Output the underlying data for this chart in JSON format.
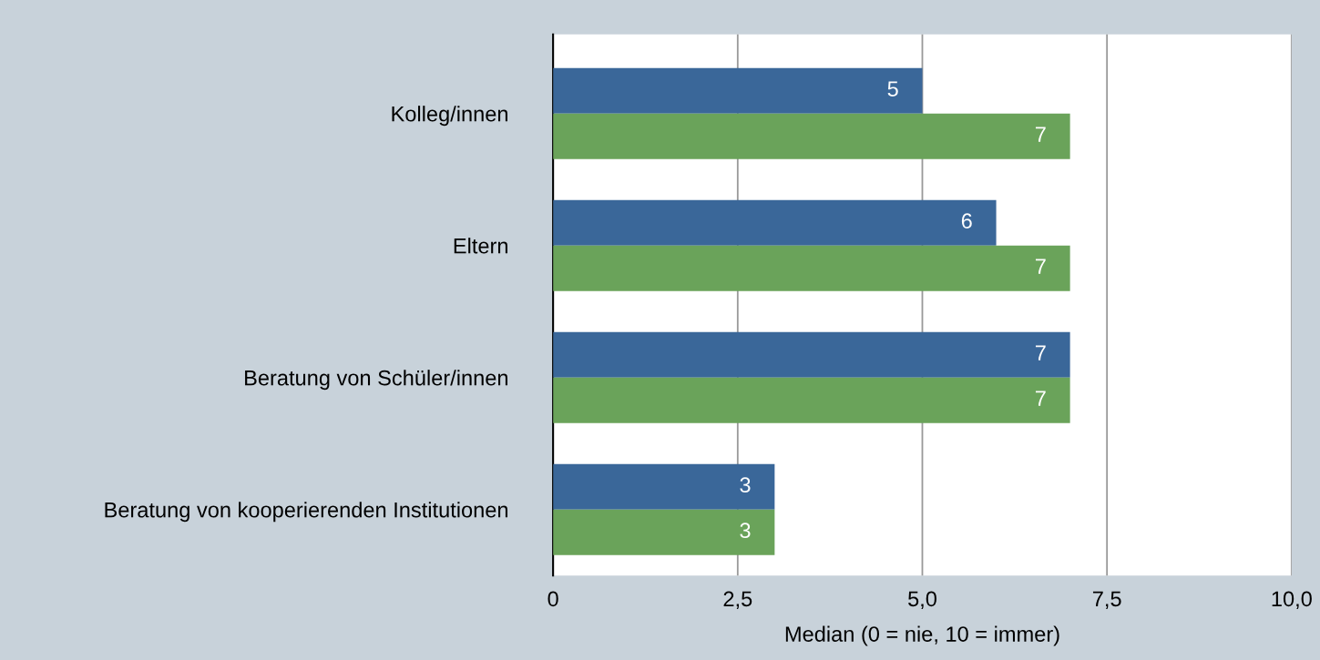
{
  "chart_data": {
    "type": "bar",
    "orientation": "horizontal",
    "categories": [
      "Kolleg/innen",
      "Eltern",
      "Beratung von Schüler/innen",
      "Beratung von kooperierenden Institutionen"
    ],
    "series": [
      {
        "color": "#3a6799",
        "values": [
          5,
          6,
          7,
          3
        ]
      },
      {
        "color": "#6aa35a",
        "values": [
          7,
          7,
          7,
          3
        ]
      }
    ],
    "xlabel": "Median (0 = nie, 10 = immer)",
    "xlim": [
      0,
      10
    ],
    "xticks": [
      0,
      {
        "value": 2.5,
        "label": "2,5"
      },
      {
        "value": 5,
        "label": "5,0"
      },
      {
        "value": 7.5,
        "label": "7,5"
      },
      {
        "value": 10,
        "label": "10,0"
      }
    ],
    "grid": "x",
    "data_labels": true,
    "legend": false
  }
}
